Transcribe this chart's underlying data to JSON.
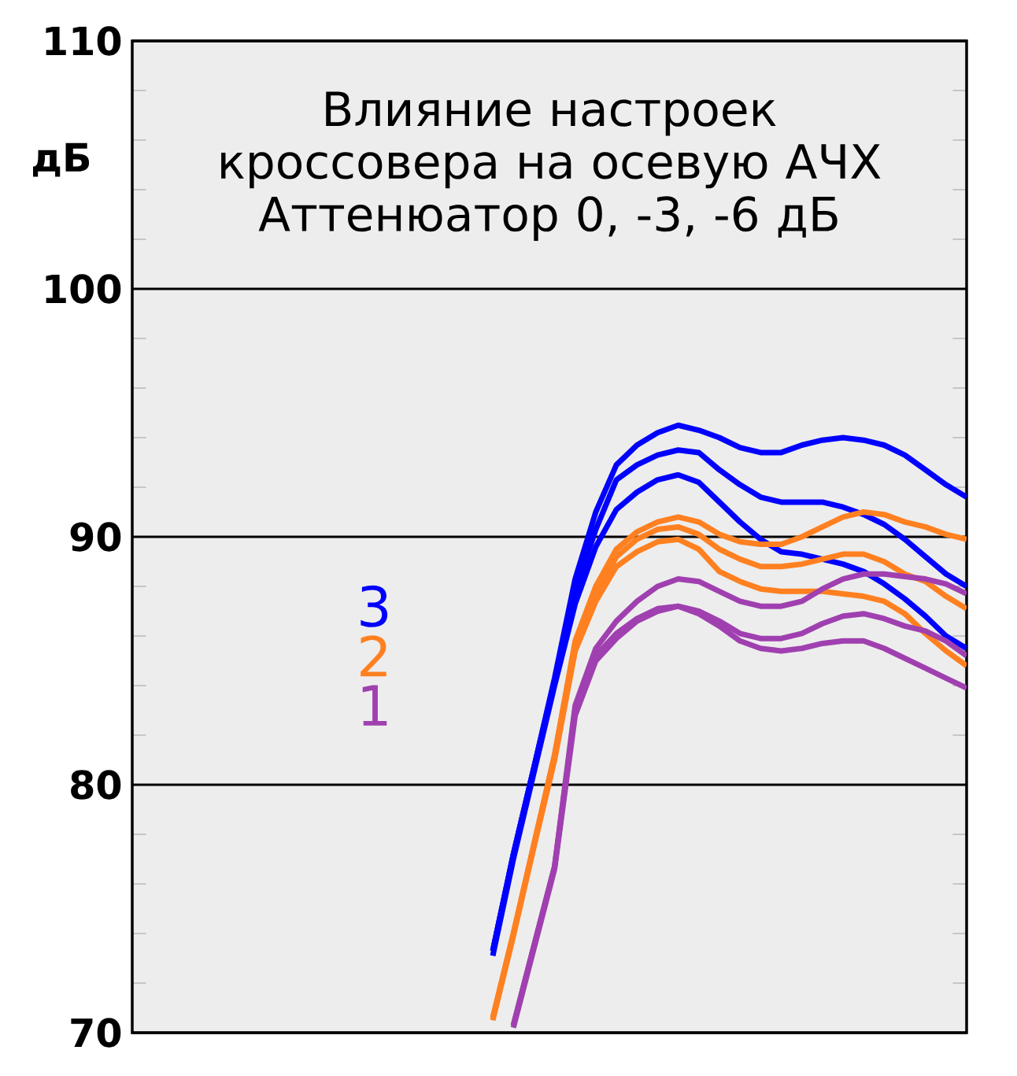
{
  "chart_data": {
    "type": "line",
    "title": "Влияние настроек кроссовера на осевую АЧХ",
    "subtitle": "Аттенюатор 0, -3, -6 дБ",
    "ylabel": "дБ",
    "categories": [
      null,
      null,
      null,
      null,
      null,
      null,
      null,
      null,
      null,
      null,
      null,
      null,
      null,
      null,
      null,
      null,
      null,
      null,
      null,
      null,
      null,
      null,
      null,
      null,
      null,
      null,
      null,
      null,
      null,
      null,
      null,
      null,
      null,
      null,
      null,
      null,
      null,
      null,
      null,
      null,
      null
    ],
    "ylim": [
      70,
      110
    ],
    "yticks": [
      70,
      80,
      90,
      100,
      110
    ],
    "grid": "y",
    "legend": "left",
    "tick_labels": "y",
    "line_style": "solid",
    "marker": "none",
    "series": [
      {
        "name": "3",
        "color": "#0000ff",
        "values": [
          null,
          null,
          null,
          null,
          null,
          null,
          null,
          null,
          null,
          null,
          null,
          null,
          null,
          null,
          null,
          null,
          null,
          73.3,
          77.2,
          80.7,
          84.3,
          88.3,
          91,
          92.9,
          93.7,
          94.2,
          94.5,
          94.3,
          94,
          93.6,
          93.4,
          93.4,
          93.7,
          93.9,
          94,
          93.9,
          93.7,
          93.3,
          92.7,
          92.1,
          91.6
        ]
      },
      {
        "color": "#0000ff",
        "values": [
          null,
          null,
          null,
          null,
          null,
          null,
          null,
          null,
          null,
          null,
          null,
          null,
          null,
          null,
          null,
          null,
          null,
          73.3,
          77.2,
          80.7,
          84.2,
          87.8,
          90.3,
          92.3,
          92.9,
          93.3,
          93.5,
          93.4,
          92.7,
          92.1,
          91.6,
          91.4,
          91.4,
          91.4,
          91.2,
          90.9,
          90.5,
          89.9,
          89.2,
          88.5,
          88
        ]
      },
      {
        "color": "#0000ff",
        "values": [
          null,
          null,
          null,
          null,
          null,
          null,
          null,
          null,
          null,
          null,
          null,
          null,
          null,
          null,
          null,
          null,
          null,
          73.1,
          77,
          80.5,
          84,
          87.3,
          89.6,
          91.1,
          91.8,
          92.3,
          92.5,
          92.2,
          91.4,
          90.6,
          89.9,
          89.4,
          89.3,
          89.1,
          88.9,
          88.6,
          88.1,
          87.5,
          86.8,
          86,
          85.5
        ]
      },
      {
        "name": "2",
        "color": "#ff8020",
        "values": [
          null,
          null,
          null,
          null,
          null,
          null,
          null,
          null,
          null,
          null,
          null,
          null,
          null,
          null,
          null,
          null,
          null,
          70.6,
          74,
          77.6,
          81.2,
          85.8,
          88,
          89.5,
          90.2,
          90.6,
          90.8,
          90.6,
          90.1,
          89.8,
          89.7,
          89.7,
          90,
          90.4,
          90.8,
          91,
          90.9,
          90.6,
          90.4,
          90.1,
          89.9
        ]
      },
      {
        "color": "#ff8020",
        "values": [
          null,
          null,
          null,
          null,
          null,
          null,
          null,
          null,
          null,
          null,
          null,
          null,
          null,
          null,
          null,
          null,
          null,
          70.6,
          74,
          77.6,
          81.2,
          85.6,
          87.7,
          89.2,
          89.9,
          90.3,
          90.4,
          90.1,
          89.5,
          89.1,
          88.8,
          88.8,
          88.9,
          89.1,
          89.3,
          89.3,
          89,
          88.5,
          88.2,
          87.6,
          87.1
        ]
      },
      {
        "color": "#ff8020",
        "values": [
          null,
          null,
          null,
          null,
          null,
          null,
          null,
          null,
          null,
          null,
          null,
          null,
          null,
          null,
          null,
          null,
          null,
          70.5,
          73.9,
          77.5,
          81,
          85.4,
          87.4,
          88.8,
          89.4,
          89.8,
          89.9,
          89.5,
          88.6,
          88.2,
          87.9,
          87.8,
          87.8,
          87.8,
          87.7,
          87.6,
          87.4,
          86.9,
          86.1,
          85.4,
          84.8
        ]
      },
      {
        "name": "1",
        "color": "#a040b0",
        "values": [
          null,
          null,
          null,
          null,
          null,
          null,
          null,
          null,
          null,
          null,
          null,
          null,
          null,
          null,
          null,
          null,
          null,
          null,
          70.3,
          73.5,
          76.7,
          83.2,
          85.5,
          86.6,
          87.4,
          88,
          88.3,
          88.2,
          87.8,
          87.4,
          87.2,
          87.2,
          87.4,
          87.9,
          88.3,
          88.5,
          88.5,
          88.4,
          88.3,
          88.1,
          87.7
        ]
      },
      {
        "color": "#a040b0",
        "values": [
          null,
          null,
          null,
          null,
          null,
          null,
          null,
          null,
          null,
          null,
          null,
          null,
          null,
          null,
          null,
          null,
          null,
          null,
          70.3,
          73.5,
          76.7,
          83,
          85.2,
          86.1,
          86.7,
          87.1,
          87.2,
          87,
          86.6,
          86.1,
          85.9,
          85.9,
          86.1,
          86.5,
          86.8,
          86.9,
          86.7,
          86.4,
          86.2,
          85.8,
          85.2
        ]
      },
      {
        "color": "#a040b0",
        "values": [
          null,
          null,
          null,
          null,
          null,
          null,
          null,
          null,
          null,
          null,
          null,
          null,
          null,
          null,
          null,
          null,
          null,
          null,
          70.2,
          73.4,
          76.6,
          82.8,
          85,
          85.9,
          86.6,
          87,
          87.2,
          86.9,
          86.4,
          85.8,
          85.5,
          85.4,
          85.5,
          85.7,
          85.8,
          85.8,
          85.5,
          85.1,
          84.7,
          84.3,
          83.9
        ]
      }
    ]
  }
}
